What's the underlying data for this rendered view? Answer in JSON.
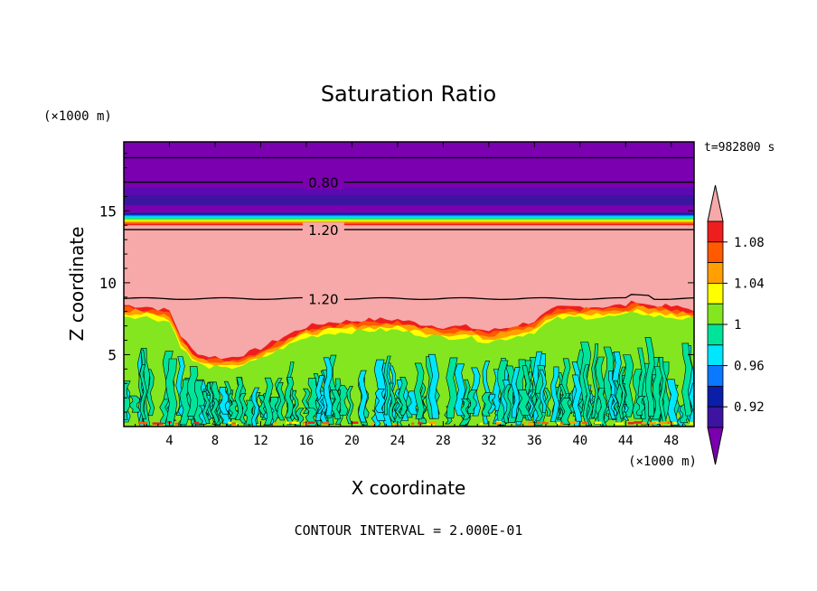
{
  "chart_data": {
    "type": "heatmap",
    "title": "Saturation Ratio",
    "xlabel": "X coordinate",
    "ylabel": "Z coordinate",
    "x_unit": "(×1000 m)",
    "y_unit": "(×1000 m)",
    "xlim": [
      0,
      50
    ],
    "ylim": [
      0,
      19.8
    ],
    "x_ticks": [
      4,
      8,
      12,
      16,
      20,
      24,
      28,
      32,
      36,
      40,
      44,
      48
    ],
    "y_ticks": [
      5,
      10,
      15
    ],
    "time_label": "t=982800 s",
    "footer": "CONTOUR INTERVAL = 2.000E-01",
    "contour_labels": [
      {
        "text": "0.80",
        "x": 17.5,
        "z": 17.0
      },
      {
        "text": "1.20",
        "x": 17.5,
        "z": 13.7
      },
      {
        "text": "1.20",
        "x": 17.5,
        "z": 8.9
      }
    ],
    "colorbar": {
      "tick_labels": [
        "1.08",
        "1.04",
        "1",
        "0.96",
        "0.92"
      ],
      "levels": [
        0.9,
        0.92,
        0.94,
        0.96,
        0.98,
        1.0,
        1.02,
        1.04,
        1.06,
        1.08,
        1.1
      ],
      "colors": [
        "#7a00b0",
        "#3c14a0",
        "#0a1eaa",
        "#0a78ff",
        "#00e6ff",
        "#00e39a",
        "#84e61e",
        "#ffff00",
        "#ffa000",
        "#ff5a00",
        "#ee1e1e",
        "#f7a8a8"
      ]
    },
    "layers": [
      {
        "z_from": 0,
        "z_to": 7.5,
        "value": "0.96-1.02 (turbulent mix)"
      },
      {
        "z_from": 7.5,
        "z_to": 14.0,
        "value": ">1.10"
      },
      {
        "z_from": 14.0,
        "z_to": 14.8,
        "value": "1.10 to 0.90 transition"
      },
      {
        "z_from": 14.8,
        "z_to": 19.8,
        "value": "<0.90"
      }
    ]
  }
}
